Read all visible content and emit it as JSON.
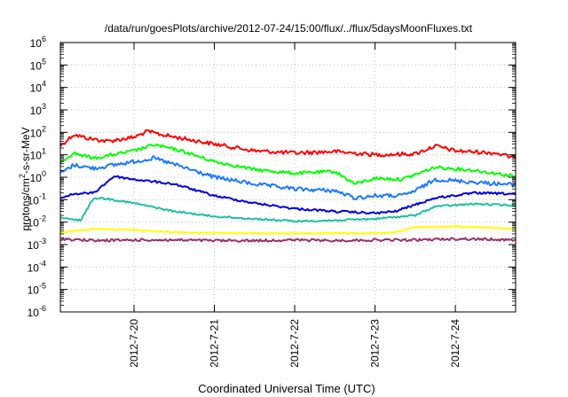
{
  "chart_data": {
    "type": "line",
    "title": "/data/run/goesPlots/archive/2012-07-24/15:00/flux/../flux/5daysMoonFluxes.txt",
    "xlabel": "Coordinated Universal Time (UTC)",
    "ylabel": "protons/cm2-s-sr-MeV",
    "ylabel_parts": {
      "pre": "protons/cm",
      "sup": "2",
      "post": "-s-sr-MeV"
    },
    "y_scale": "log",
    "ylim": [
      1e-06,
      1000000.0
    ],
    "y_ticks": [
      {
        "exp": "-6",
        "value": 1e-06
      },
      {
        "exp": "-5",
        "value": 1e-05
      },
      {
        "exp": "-4",
        "value": 0.0001
      },
      {
        "exp": "-3",
        "value": 0.001
      },
      {
        "exp": "-2",
        "value": 0.01
      },
      {
        "exp": "-1",
        "value": 0.1
      },
      {
        "exp": "0",
        "value": 1
      },
      {
        "exp": "1",
        "value": 10.0
      },
      {
        "exp": "2",
        "value": 100.0
      },
      {
        "exp": "3",
        "value": 1000.0
      },
      {
        "exp": "4",
        "value": 10000.0
      },
      {
        "exp": "5",
        "value": 100000.0
      },
      {
        "exp": "6",
        "value": 1000000.0
      }
    ],
    "xlim": [
      "2012-07-19 02:00",
      "2012-07-24 18:00"
    ],
    "x_ticks": [
      "2012-7-20",
      "2012-7-21",
      "2012-7-22",
      "2012-7-23",
      "2012-7-24"
    ],
    "grid": true,
    "legend": "none",
    "series": [
      {
        "color": "#ff0000",
        "x": [
          "2012-07-19 02:00",
          "2012-07-19 06:00",
          "2012-07-19 10:00",
          "2012-07-19 16:00",
          "2012-07-20 00:00",
          "2012-07-20 04:00",
          "2012-07-20 08:00",
          "2012-07-20 14:00",
          "2012-07-21 00:00",
          "2012-07-21 12:00",
          "2012-07-22 00:00",
          "2012-07-22 12:00",
          "2012-07-23 00:00",
          "2012-07-23 12:00",
          "2012-07-23 18:00",
          "2012-07-24 00:00",
          "2012-07-24 12:00",
          "2012-07-24 18:00"
        ],
        "y": [
          25,
          80,
          55,
          40,
          60,
          110,
          80,
          55,
          30,
          15,
          12,
          14,
          10,
          11,
          25,
          15,
          12,
          7
        ]
      },
      {
        "color": "#00ff00",
        "x": [
          "2012-07-19 02:00",
          "2012-07-19 06:00",
          "2012-07-19 12:00",
          "2012-07-20 00:00",
          "2012-07-20 06:00",
          "2012-07-20 14:00",
          "2012-07-21 00:00",
          "2012-07-21 12:00",
          "2012-07-22 00:00",
          "2012-07-22 12:00",
          "2012-07-22 18:00",
          "2012-07-23 00:00",
          "2012-07-23 08:00",
          "2012-07-23 12:00",
          "2012-07-23 18:00",
          "2012-07-24 06:00",
          "2012-07-24 18:00"
        ],
        "y": [
          5,
          12,
          7,
          15,
          28,
          15,
          5,
          2.2,
          1.5,
          1.8,
          0.5,
          0.9,
          0.8,
          1.3,
          2.8,
          2,
          1.1
        ]
      },
      {
        "color": "#1e78ff",
        "x": [
          "2012-07-19 02:00",
          "2012-07-19 06:00",
          "2012-07-19 12:00",
          "2012-07-20 00:00",
          "2012-07-20 06:00",
          "2012-07-20 14:00",
          "2012-07-21 00:00",
          "2012-07-21 12:00",
          "2012-07-22 00:00",
          "2012-07-22 12:00",
          "2012-07-22 18:00",
          "2012-07-23 00:00",
          "2012-07-23 08:00",
          "2012-07-23 12:00",
          "2012-07-23 18:00",
          "2012-07-24 06:00",
          "2012-07-24 18:00"
        ],
        "y": [
          1.5,
          3.5,
          2.5,
          5,
          7,
          3,
          1,
          0.5,
          0.3,
          0.25,
          0.12,
          0.15,
          0.15,
          0.25,
          0.8,
          0.6,
          0.45
        ]
      },
      {
        "color": "#0000dd",
        "x": [
          "2012-07-19 02:00",
          "2012-07-19 06:00",
          "2012-07-19 12:00",
          "2012-07-19 18:00",
          "2012-07-20 00:00",
          "2012-07-20 12:00",
          "2012-07-21 00:00",
          "2012-07-21 12:00",
          "2012-07-22 00:00",
          "2012-07-22 12:00",
          "2012-07-23 00:00",
          "2012-07-23 06:00",
          "2012-07-23 12:00",
          "2012-07-23 18:00",
          "2012-07-24 06:00",
          "2012-07-24 18:00"
        ],
        "y": [
          0.12,
          0.18,
          0.2,
          1.1,
          0.8,
          0.5,
          0.15,
          0.07,
          0.04,
          0.03,
          0.025,
          0.03,
          0.06,
          0.12,
          0.2,
          0.18
        ]
      },
      {
        "color": "#20c0a0",
        "x": [
          "2012-07-19 02:00",
          "2012-07-19 08:00",
          "2012-07-19 12:00",
          "2012-07-19 16:00",
          "2012-07-20 00:00",
          "2012-07-20 12:00",
          "2012-07-21 00:00",
          "2012-07-21 12:00",
          "2012-07-22 00:00",
          "2012-07-22 12:00",
          "2012-07-23 00:00",
          "2012-07-23 12:00",
          "2012-07-23 18:00",
          "2012-07-24 06:00",
          "2012-07-24 18:00"
        ],
        "y": [
          0.015,
          0.012,
          0.12,
          0.11,
          0.07,
          0.03,
          0.018,
          0.014,
          0.011,
          0.012,
          0.014,
          0.02,
          0.05,
          0.065,
          0.055
        ]
      },
      {
        "color": "#ffff00",
        "x": [
          "2012-07-19 02:00",
          "2012-07-19 12:00",
          "2012-07-20 00:00",
          "2012-07-20 12:00",
          "2012-07-21 00:00",
          "2012-07-21 12:00",
          "2012-07-22 00:00",
          "2012-07-22 12:00",
          "2012-07-23 00:00",
          "2012-07-23 06:00",
          "2012-07-23 12:00",
          "2012-07-24 00:00",
          "2012-07-24 12:00",
          "2012-07-24 18:00"
        ],
        "y": [
          0.0035,
          0.005,
          0.0045,
          0.0035,
          0.0033,
          0.0032,
          0.0031,
          0.0032,
          0.0032,
          0.0036,
          0.006,
          0.0065,
          0.0055,
          0.005
        ]
      },
      {
        "color": "#993366",
        "x": [
          "2012-07-19 02:00",
          "2012-07-19 12:00",
          "2012-07-20 00:00",
          "2012-07-20 12:00",
          "2012-07-21 00:00",
          "2012-07-21 12:00",
          "2012-07-22 00:00",
          "2012-07-22 12:00",
          "2012-07-23 00:00",
          "2012-07-23 12:00",
          "2012-07-24 00:00",
          "2012-07-24 12:00",
          "2012-07-24 18:00"
        ],
        "y": [
          0.0018,
          0.0015,
          0.0016,
          0.0016,
          0.0015,
          0.0015,
          0.0016,
          0.0015,
          0.0016,
          0.0016,
          0.0018,
          0.0017,
          0.0016
        ]
      }
    ]
  }
}
